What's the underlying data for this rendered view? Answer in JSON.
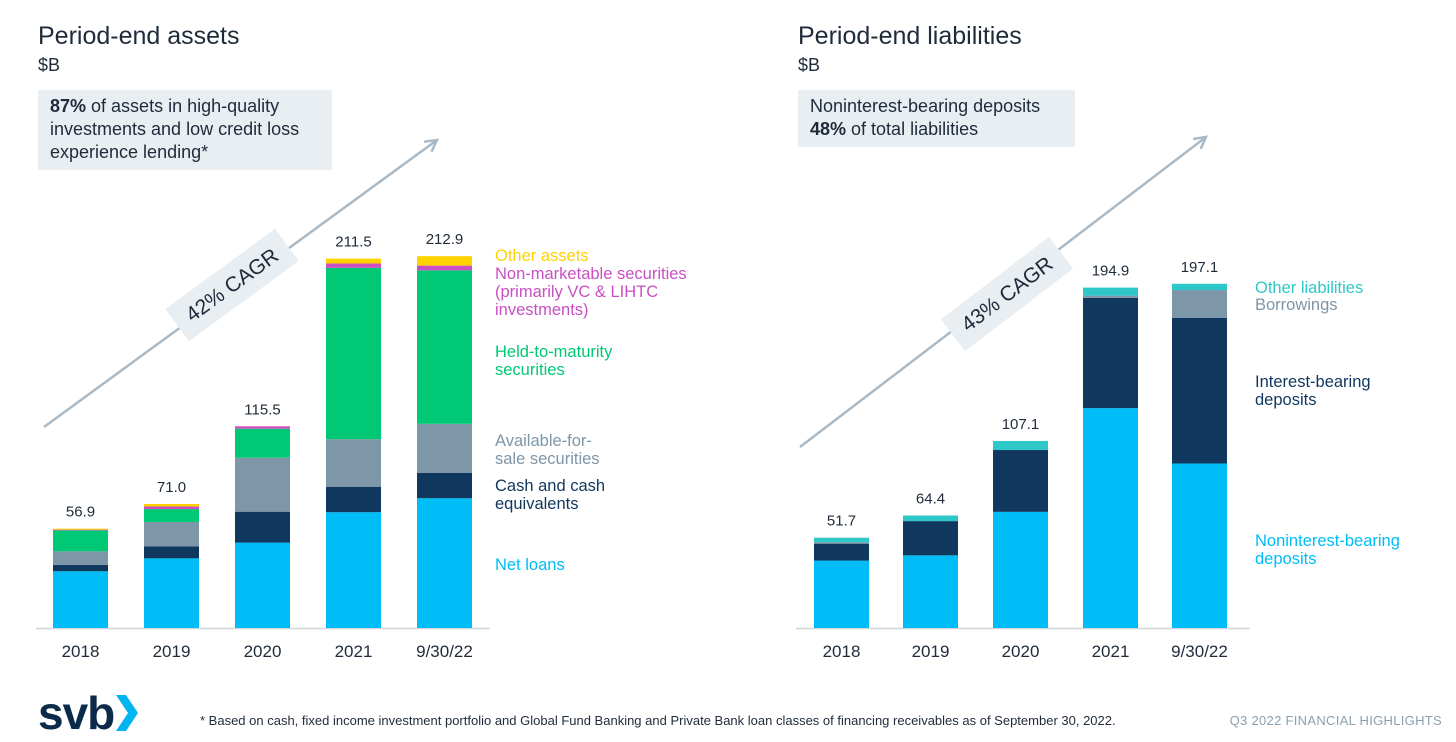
{
  "colors": {
    "net_loans": "#00bdf7",
    "cash": "#10375e",
    "afs": "#7d96a8",
    "htm": "#00c875",
    "nonmarketable": "#c94fc2",
    "other_assets": "#ffd200",
    "nonint_deposits": "#00bdf7",
    "int_deposits": "#10375e",
    "borrowings": "#7d96a8",
    "other_liabilities": "#2ec8c8",
    "arrow": "#a9b9c6",
    "cagr_box": "#e8eef2",
    "axis": "#cfd6dc"
  },
  "icons": {
    "logo_mark": "svb-chevron-logo"
  },
  "footer": {
    "logo_text": "svb",
    "footnote": "* Based on cash, fixed income investment portfolio and Global Fund Banking and Private Bank loan classes of financing receivables as of September 30, 2022.",
    "right_text": "Q3 2022 FINANCIAL HIGHLIGHTS"
  },
  "chart_data": [
    {
      "type": "bar",
      "stacked": true,
      "title": "Period-end assets",
      "subtitle": "$B",
      "callout": {
        "bold": "87%",
        "text": " of assets in high-quality investments and low credit loss experience lending*"
      },
      "cagr_label": "42% CAGR",
      "categories": [
        "2018",
        "2019",
        "2020",
        "2021",
        "9/30/22"
      ],
      "totals": [
        "56.9",
        "71.0",
        "115.5",
        "211.5",
        "212.9"
      ],
      "ylim": [
        0,
        213
      ],
      "legend_position": "right",
      "series": [
        {
          "key": "net_loans",
          "name": "Net loans",
          "values": [
            32.5,
            39.9,
            48.9,
            66.3,
            74.3
          ]
        },
        {
          "key": "cash",
          "name": "Cash and cash equivalents",
          "values": [
            3.6,
            6.8,
            17.7,
            14.6,
            14.6
          ]
        },
        {
          "key": "afs",
          "name": "Available-for-sale securities",
          "values": [
            7.8,
            14.0,
            30.9,
            27.2,
            28.0
          ]
        },
        {
          "key": "htm",
          "name": "Held-to-maturity securities",
          "values": [
            12.0,
            7.4,
            16.6,
            98.1,
            87.9
          ]
        },
        {
          "key": "nonmarketable",
          "name": "Non-marketable securities (primarily VC & LIHTC investments)",
          "values": [
            0.4,
            1.5,
            1.4,
            2.5,
            2.7
          ]
        },
        {
          "key": "other_assets",
          "name": "Other assets",
          "values": [
            0.6,
            1.4,
            0.0,
            2.8,
            5.4
          ]
        }
      ],
      "legend_labels": [
        {
          "key": "other_assets",
          "lines": [
            "Other assets"
          ]
        },
        {
          "key": "nonmarketable",
          "lines": [
            "Non-marketable securities",
            "(primarily VC & LIHTC",
            "investments)"
          ]
        },
        {
          "key": "htm",
          "lines": [
            "Held-to-maturity",
            "securities"
          ]
        },
        {
          "key": "afs",
          "lines": [
            "Available-for-",
            "sale securities"
          ]
        },
        {
          "key": "cash",
          "lines": [
            "Cash and cash",
            "equivalents"
          ]
        },
        {
          "key": "net_loans",
          "lines": [
            "Net loans"
          ]
        }
      ]
    },
    {
      "type": "bar",
      "stacked": true,
      "title": "Period-end liabilities",
      "subtitle": "$B",
      "callout": {
        "line1": "Noninterest-bearing deposits",
        "bold": "48%",
        "text": " of total liabilities"
      },
      "cagr_label": "43% CAGR",
      "categories": [
        "2018",
        "2019",
        "2020",
        "2021",
        "9/30/22"
      ],
      "totals": [
        "51.7",
        "64.4",
        "107.1",
        "194.9",
        "197.1"
      ],
      "ylim": [
        0,
        213
      ],
      "legend_position": "right",
      "series": [
        {
          "key": "nonint_deposits",
          "name": "Noninterest-bearing deposits",
          "values": [
            38.6,
            41.6,
            66.5,
            125.9,
            94.2
          ]
        },
        {
          "key": "int_deposits",
          "name": "Interest-bearing deposits",
          "values": [
            9.7,
            19.6,
            35.4,
            63.1,
            83.3
          ]
        },
        {
          "key": "borrowings",
          "name": "Borrowings",
          "values": [
            0.8,
            0.0,
            0.0,
            1.3,
            16.0
          ]
        },
        {
          "key": "other_liabilities",
          "name": "Other liabilities",
          "values": [
            2.6,
            3.2,
            5.2,
            4.6,
            3.6
          ]
        }
      ],
      "legend_labels": [
        {
          "key": "other_liabilities",
          "lines": [
            "Other liabilities"
          ]
        },
        {
          "key": "borrowings",
          "lines": [
            "Borrowings"
          ]
        },
        {
          "key": "int_deposits",
          "lines": [
            "Interest-bearing",
            "deposits"
          ]
        },
        {
          "key": "nonint_deposits",
          "lines": [
            "Noninterest-bearing",
            "deposits"
          ]
        }
      ]
    }
  ]
}
